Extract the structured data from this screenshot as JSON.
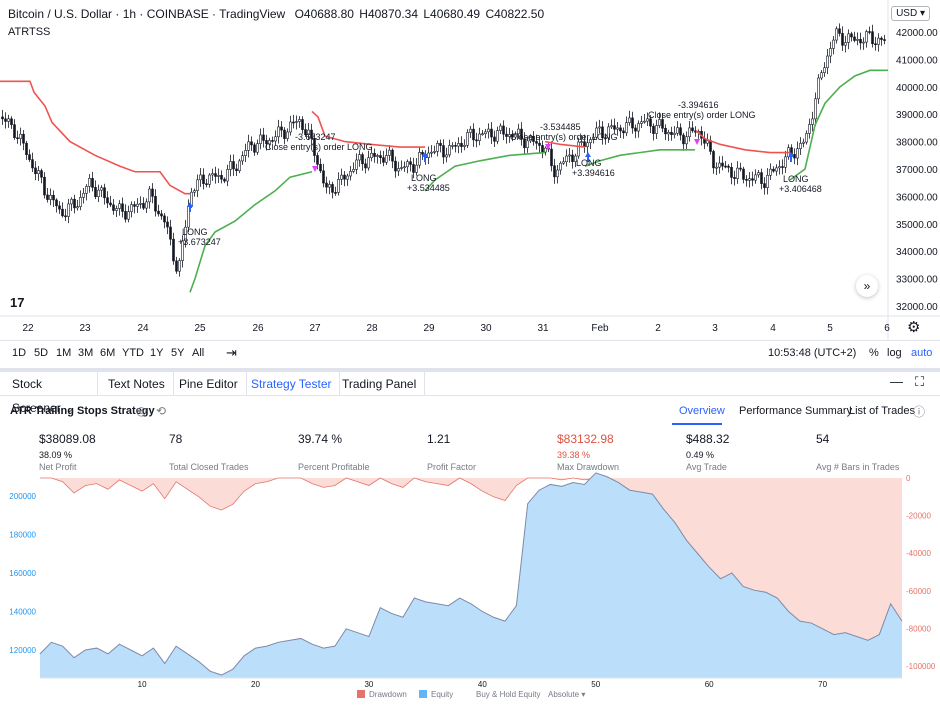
{
  "chart": {
    "symbol_title": "Bitcoin / U.S. Dollar · 1h · COINBASE · TradingView",
    "ohlc": {
      "o": "O40688.80",
      "h": "H40870.34",
      "l": "L40680.49",
      "c": "C40822.50"
    },
    "indicator": "ATRTSS",
    "currency_button": "USD ▾",
    "price_ticks": [
      "42000.00",
      "41000.00",
      "40000.00",
      "39000.00",
      "38000.00",
      "37000.00",
      "36000.00",
      "35000.00",
      "34000.00",
      "33000.00",
      "32000.00"
    ],
    "date_ticks": [
      "22",
      "23",
      "24",
      "25",
      "26",
      "27",
      "28",
      "29",
      "30",
      "31",
      "Feb",
      "2",
      "3",
      "4",
      "5",
      "6"
    ],
    "trade_labels": [
      {
        "text": "LONG",
        "sub": "+3.673247"
      },
      {
        "text": "Close entry(s) order LONG",
        "sub": "-3.673247"
      },
      {
        "text": "LONG",
        "sub": "+3.534485"
      },
      {
        "text": "Close entry(s) order LONG",
        "sub": "-3.534485"
      },
      {
        "text": "LONG",
        "sub": "+3.394616"
      },
      {
        "text": "Close entry(s) order LONG",
        "sub": "-3.394616"
      },
      {
        "text": "LONG",
        "sub": "+3.406468"
      }
    ],
    "colors": {
      "up": "#131722",
      "stop_red": "#ef5350",
      "stop_green": "#4caf50",
      "long_arrow": "#2962ff",
      "close_mark": "#e040fb"
    },
    "logo": "17",
    "scroll_icon": "chevron-double-right-icon",
    "gear_icon": "gear-icon"
  },
  "range_bar": {
    "ranges": [
      "1D",
      "5D",
      "1M",
      "3M",
      "6M",
      "YTD",
      "1Y",
      "5Y",
      "All"
    ],
    "time": "10:53:48 (UTC+2)",
    "percent": "%",
    "log": "log",
    "auto": "auto"
  },
  "bottom_tabs": {
    "items": [
      "Stock Screener",
      "Text Notes",
      "Pine Editor",
      "Strategy Tester",
      "Trading Panel"
    ],
    "active": "Strategy Tester"
  },
  "strategy": {
    "name": "ATR Trailing Stops Strategy",
    "subtabs": [
      "Overview",
      "Performance Summary",
      "List of Trades"
    ],
    "active_subtab": "Overview"
  },
  "metrics": [
    {
      "value": "$38089.08",
      "pct": "38.09 %",
      "label": "Net Profit",
      "red": false
    },
    {
      "value": "78",
      "pct": "",
      "label": "Total Closed Trades",
      "red": false
    },
    {
      "value": "39.74 %",
      "pct": "",
      "label": "Percent Profitable",
      "red": false
    },
    {
      "value": "1.21",
      "pct": "",
      "label": "Profit Factor",
      "red": false
    },
    {
      "value": "$83132.98",
      "pct": "39.38 %",
      "label": "Max Drawdown",
      "red": true
    },
    {
      "value": "$488.32",
      "pct": "0.49 %",
      "label": "Avg Trade",
      "red": false
    },
    {
      "value": "54",
      "pct": "",
      "label": "Avg # Bars in Trades",
      "red": false
    }
  ],
  "equity_chart": {
    "left_ticks": [
      "200000",
      "180000",
      "160000",
      "140000",
      "120000"
    ],
    "right_ticks": [
      "0",
      "-20000",
      "-40000",
      "-60000",
      "-80000",
      "-100000"
    ],
    "x_ticks": [
      "10",
      "20",
      "30",
      "40",
      "50",
      "60",
      "70"
    ],
    "legend": {
      "drawdown": "Drawdown",
      "equity": "Equity",
      "buy_hold": "Buy & Hold Equity",
      "absolute": "Absolute ▾"
    },
    "colors": {
      "equity_fill": "#bbdefb",
      "equity_line": "#7e8aa8",
      "drawdown_fill": "#fcdcd7",
      "drawdown_line": "#e57368"
    }
  }
}
